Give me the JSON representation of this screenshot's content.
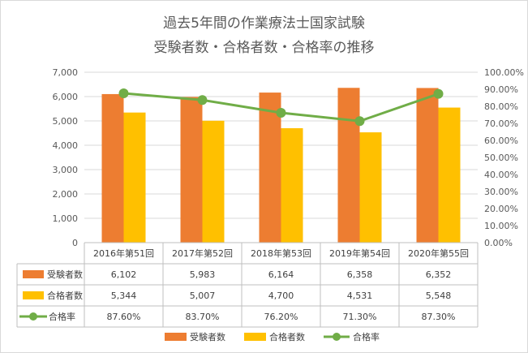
{
  "title_line1": "過去5年間の作業療法士国家試験",
  "title_line2": "受験者数・合格者数・合格率の推移",
  "chart_data": {
    "type": "bar",
    "categories": [
      "2016年第51回",
      "2017年第52回",
      "2018年第53回",
      "2019年第54回",
      "2020年第55回"
    ],
    "series": [
      {
        "name": "受験者数",
        "kind": "bar",
        "axis": "left",
        "color": "#ED7D31",
        "values": [
          6102,
          5983,
          6164,
          6358,
          6352
        ],
        "labels": [
          "6,102",
          "5,983",
          "6,164",
          "6,358",
          "6,352"
        ]
      },
      {
        "name": "合格者数",
        "kind": "bar",
        "axis": "left",
        "color": "#FFC000",
        "values": [
          5344,
          5007,
          4700,
          4531,
          5548
        ],
        "labels": [
          "5,344",
          "5,007",
          "4,700",
          "4,531",
          "5,548"
        ]
      },
      {
        "name": "合格率",
        "kind": "line",
        "axis": "right",
        "color": "#70AD47",
        "values": [
          87.6,
          83.7,
          76.2,
          71.3,
          87.3
        ],
        "labels": [
          "87.60%",
          "83.70%",
          "76.20%",
          "71.30%",
          "87.30%"
        ]
      }
    ],
    "y_left": {
      "min": 0,
      "max": 7000,
      "step": 1000,
      "tick_labels": [
        "0",
        "1,000",
        "2,000",
        "3,000",
        "4,000",
        "5,000",
        "6,000",
        "7,000"
      ]
    },
    "y_right": {
      "min": 0,
      "max": 100,
      "step": 10,
      "tick_labels": [
        "0.00%",
        "10.00%",
        "20.00%",
        "30.00%",
        "40.00%",
        "50.00%",
        "60.00%",
        "70.00%",
        "80.00%",
        "90.00%",
        "100.00%"
      ]
    },
    "gridlines": true,
    "data_table": true,
    "legend_position": "bottom"
  }
}
